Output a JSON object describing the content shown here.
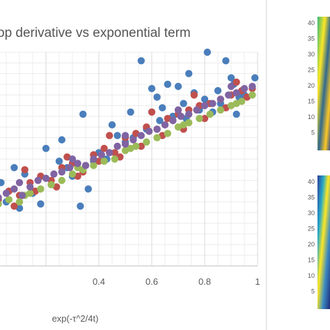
{
  "chart_data": [
    {
      "type": "scatter",
      "title": "op derivative vs exponential term",
      "xlabel": "exp(-τ^2/4t)",
      "ylabel": "",
      "xlim": [
        0.0,
        1.0
      ],
      "ylim": [
        0,
        10
      ],
      "x_ticks": [
        "0.4",
        "0.6",
        "0.8",
        "1"
      ],
      "x_tick_values": [
        0.4,
        0.6,
        0.8,
        1.0
      ],
      "grid": true,
      "legend": "none",
      "series": [
        {
          "color": "#4a7ebb",
          "points": [
            [
              0.03,
              3.9
            ],
            [
              0.08,
              4.6
            ],
            [
              0.12,
              4.3
            ],
            [
              0.2,
              5.5
            ],
            [
              0.26,
              5.9
            ],
            [
              0.3,
              4.2
            ],
            [
              0.34,
              7.1
            ],
            [
              0.38,
              4.9
            ],
            [
              0.45,
              6.6
            ],
            [
              0.47,
              6.1
            ],
            [
              0.52,
              7.2
            ],
            [
              0.56,
              9.6
            ],
            [
              0.6,
              8.3
            ],
            [
              0.62,
              7.9
            ],
            [
              0.64,
              7.4
            ],
            [
              0.66,
              8.5
            ],
            [
              0.7,
              8.4
            ],
            [
              0.72,
              7.6
            ],
            [
              0.74,
              9.0
            ],
            [
              0.76,
              8.1
            ],
            [
              0.8,
              7.8
            ],
            [
              0.81,
              10.0
            ],
            [
              0.85,
              8.2
            ],
            [
              0.88,
              9.6
            ],
            [
              0.9,
              8.8
            ],
            [
              0.91,
              8.5
            ],
            [
              0.92,
              7.1
            ],
            [
              0.99,
              8.8
            ],
            [
              0.1,
              2.7
            ],
            [
              0.15,
              3.4
            ],
            [
              0.22,
              3.8
            ],
            [
              0.28,
              4.6
            ],
            [
              0.33,
              2.8
            ],
            [
              0.4,
              5.3
            ],
            [
              0.5,
              5.8
            ],
            [
              0.58,
              6.4
            ],
            [
              0.68,
              7.0
            ],
            [
              0.78,
              7.3
            ],
            [
              0.86,
              7.6
            ],
            [
              0.95,
              8.0
            ],
            [
              0.05,
              3.0
            ],
            [
              0.18,
              2.9
            ],
            [
              0.25,
              4.9
            ],
            [
              0.36,
              3.6
            ],
            [
              0.43,
              5.0
            ],
            [
              0.53,
              6.0
            ],
            [
              0.63,
              6.8
            ],
            [
              0.73,
              6.9
            ],
            [
              0.83,
              7.2
            ],
            [
              0.93,
              7.9
            ]
          ]
        },
        {
          "color": "#c0504d",
          "points": [
            [
              0.02,
              3.1
            ],
            [
              0.06,
              3.5
            ],
            [
              0.1,
              3.3
            ],
            [
              0.14,
              3.9
            ],
            [
              0.18,
              4.2
            ],
            [
              0.22,
              4.0
            ],
            [
              0.26,
              4.6
            ],
            [
              0.3,
              4.8
            ],
            [
              0.34,
              4.4
            ],
            [
              0.38,
              5.2
            ],
            [
              0.42,
              5.5
            ],
            [
              0.46,
              5.3
            ],
            [
              0.5,
              6.0
            ],
            [
              0.54,
              6.2
            ],
            [
              0.58,
              6.5
            ],
            [
              0.62,
              6.4
            ],
            [
              0.66,
              6.9
            ],
            [
              0.7,
              7.1
            ],
            [
              0.74,
              7.3
            ],
            [
              0.78,
              7.5
            ],
            [
              0.82,
              7.6
            ],
            [
              0.86,
              7.8
            ],
            [
              0.9,
              8.0
            ],
            [
              0.94,
              8.2
            ],
            [
              0.98,
              8.3
            ],
            [
              0.08,
              2.8
            ],
            [
              0.16,
              3.5
            ],
            [
              0.24,
              3.7
            ],
            [
              0.32,
              4.2
            ],
            [
              0.4,
              4.9
            ],
            [
              0.48,
              5.1
            ],
            [
              0.56,
              5.6
            ],
            [
              0.64,
              6.1
            ],
            [
              0.72,
              6.4
            ],
            [
              0.8,
              6.9
            ],
            [
              0.88,
              7.4
            ],
            [
              0.96,
              7.9
            ],
            [
              0.12,
              4.5
            ],
            [
              0.28,
              5.1
            ],
            [
              0.44,
              6.1
            ],
            [
              0.6,
              7.2
            ],
            [
              0.76,
              8.0
            ],
            [
              0.92,
              8.6
            ]
          ]
        },
        {
          "color": "#9bbb59",
          "points": [
            [
              0.02,
              2.9
            ],
            [
              0.06,
              3.1
            ],
            [
              0.1,
              3.0
            ],
            [
              0.14,
              3.4
            ],
            [
              0.18,
              3.6
            ],
            [
              0.22,
              3.8
            ],
            [
              0.26,
              4.0
            ],
            [
              0.3,
              4.3
            ],
            [
              0.34,
              4.5
            ],
            [
              0.38,
              4.7
            ],
            [
              0.42,
              4.9
            ],
            [
              0.46,
              5.0
            ],
            [
              0.5,
              5.4
            ],
            [
              0.54,
              5.6
            ],
            [
              0.58,
              5.8
            ],
            [
              0.62,
              6.0
            ],
            [
              0.66,
              6.2
            ],
            [
              0.7,
              6.5
            ],
            [
              0.74,
              6.7
            ],
            [
              0.78,
              6.9
            ],
            [
              0.82,
              7.1
            ],
            [
              0.86,
              7.3
            ],
            [
              0.9,
              7.5
            ],
            [
              0.94,
              7.7
            ],
            [
              0.98,
              8.0
            ],
            [
              0.12,
              3.3
            ],
            [
              0.32,
              4.6
            ],
            [
              0.52,
              5.5
            ],
            [
              0.72,
              6.6
            ],
            [
              0.92,
              7.6
            ]
          ]
        },
        {
          "color": "#8064a2",
          "points": [
            [
              0.02,
              3.2
            ],
            [
              0.05,
              3.4
            ],
            [
              0.08,
              3.6
            ],
            [
              0.11,
              3.3
            ],
            [
              0.14,
              3.7
            ],
            [
              0.17,
              4.0
            ],
            [
              0.2,
              4.1
            ],
            [
              0.23,
              4.3
            ],
            [
              0.26,
              4.4
            ],
            [
              0.29,
              4.6
            ],
            [
              0.32,
              4.8
            ],
            [
              0.35,
              4.7
            ],
            [
              0.38,
              5.0
            ],
            [
              0.41,
              5.2
            ],
            [
              0.44,
              5.3
            ],
            [
              0.47,
              5.6
            ],
            [
              0.5,
              5.7
            ],
            [
              0.53,
              5.9
            ],
            [
              0.56,
              6.1
            ],
            [
              0.59,
              6.3
            ],
            [
              0.62,
              6.4
            ],
            [
              0.65,
              6.6
            ],
            [
              0.68,
              6.8
            ],
            [
              0.71,
              7.0
            ],
            [
              0.74,
              7.1
            ],
            [
              0.77,
              7.3
            ],
            [
              0.8,
              7.5
            ],
            [
              0.83,
              7.6
            ],
            [
              0.86,
              7.8
            ],
            [
              0.89,
              8.0
            ],
            [
              0.92,
              8.1
            ],
            [
              0.95,
              8.3
            ],
            [
              0.98,
              8.4
            ],
            [
              0.1,
              3.9
            ],
            [
              0.3,
              5.0
            ],
            [
              0.5,
              6.1
            ],
            [
              0.7,
              7.3
            ],
            [
              0.9,
              8.4
            ]
          ]
        }
      ]
    },
    {
      "type": "heatmap",
      "title": "",
      "y_ticks": [
        "40",
        "35",
        "30",
        "25",
        "20",
        "15",
        "10",
        "5"
      ],
      "note": "partially visible, cropped at right edge"
    },
    {
      "type": "heatmap",
      "title": "",
      "y_ticks": [
        "40",
        "35",
        "30",
        "25",
        "20",
        "15",
        "10",
        "5"
      ],
      "note": "partially visible, cropped at right edge"
    }
  ]
}
